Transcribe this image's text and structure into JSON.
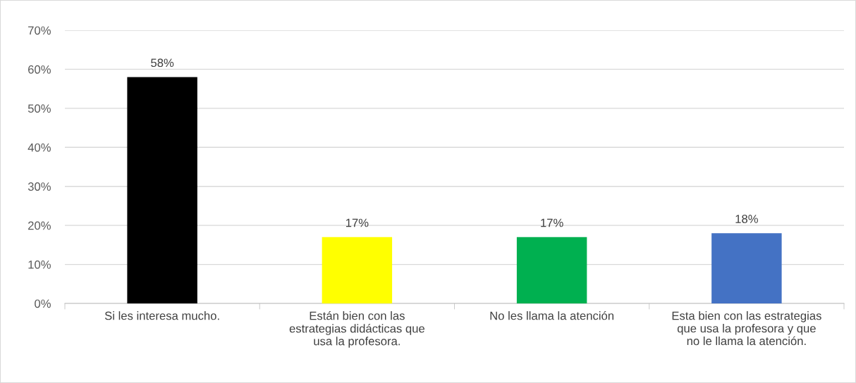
{
  "chart_data": {
    "type": "bar",
    "categories": [
      "Si les interesa mucho.",
      "Están bien con las\nestrategias didácticas que\nusa la profesora.",
      "No les llama la atención",
      "Esta bien con las estrategias\nque usa la profesora y que\nno le llama la atención."
    ],
    "values": [
      58,
      17,
      17,
      18
    ],
    "colors": [
      "#000000",
      "#ffff00",
      "#00b050",
      "#4472c4"
    ],
    "value_labels": [
      "58%",
      "17%",
      "17%",
      "18%"
    ],
    "ylim": [
      0,
      70
    ],
    "yticks": [
      {
        "value": 0,
        "label": "0%"
      },
      {
        "value": 10,
        "label": "10%"
      },
      {
        "value": 20,
        "label": "20%"
      },
      {
        "value": 30,
        "label": "30%"
      },
      {
        "value": 40,
        "label": "40%"
      },
      {
        "value": 50,
        "label": "50%"
      },
      {
        "value": 60,
        "label": "60%"
      },
      {
        "value": 70,
        "label": "70%"
      }
    ],
    "grid": "y"
  }
}
